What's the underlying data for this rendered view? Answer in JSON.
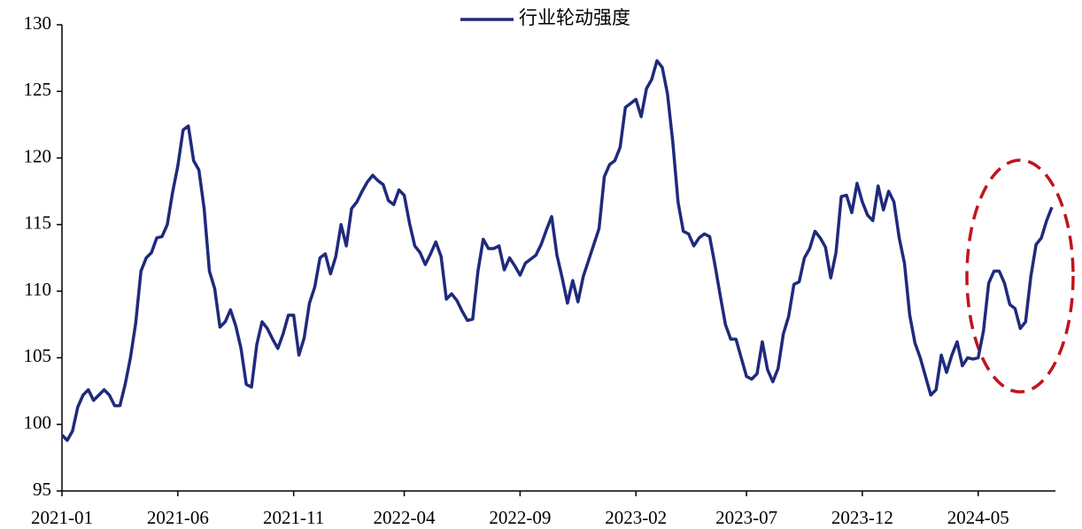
{
  "chart_data": {
    "type": "line",
    "categories": [
      "2021-01",
      null,
      null,
      null,
      null,
      null,
      null,
      null,
      null,
      null,
      null,
      null,
      null,
      null,
      null,
      null,
      null,
      null,
      null,
      null,
      null,
      null,
      "2021-06",
      null,
      null,
      null,
      null,
      null,
      null,
      null,
      null,
      null,
      null,
      null,
      null,
      null,
      null,
      null,
      null,
      null,
      null,
      null,
      null,
      null,
      "2021-11",
      null,
      null,
      null,
      null,
      null,
      null,
      null,
      null,
      null,
      null,
      null,
      null,
      null,
      null,
      null,
      null,
      null,
      null,
      null,
      null,
      "2022-04",
      null,
      null,
      null,
      null,
      null,
      null,
      null,
      null,
      null,
      null,
      null,
      null,
      null,
      null,
      null,
      null,
      null,
      null,
      null,
      null,
      null,
      "2022-09",
      null,
      null,
      null,
      null,
      null,
      null,
      null,
      null,
      null,
      null,
      null,
      null,
      null,
      null,
      null,
      null,
      null,
      null,
      null,
      null,
      null,
      "2023-02",
      null,
      null,
      null,
      null,
      null,
      null,
      null,
      null,
      null,
      null,
      null,
      null,
      null,
      null,
      null,
      null,
      null,
      null,
      null,
      null,
      "2023-07",
      null,
      null,
      null,
      null,
      null,
      null,
      null,
      null,
      null,
      null,
      null,
      null,
      null,
      null,
      null,
      null,
      null,
      null,
      null,
      null,
      null,
      "2023-12",
      null,
      null,
      null,
      null,
      null,
      null,
      null,
      null,
      null,
      null,
      null,
      null,
      null,
      null,
      null,
      null,
      null,
      null,
      null,
      null,
      null,
      "2024-05",
      null,
      null,
      null,
      null,
      null,
      null,
      null,
      null,
      null,
      null,
      null,
      null,
      null,
      null
    ],
    "series": [
      {
        "name": "行业轮动强度",
        "color": "#1f2a7c",
        "values": [
          99.2,
          98.8,
          99.5,
          101.3,
          102.2,
          102.6,
          101.8,
          102.2,
          102.6,
          102.2,
          101.4,
          101.4,
          103,
          105,
          107.6,
          111.5,
          112.5,
          112.9,
          114,
          114.1,
          115,
          117.4,
          119.4,
          122.1,
          122.4,
          119.8,
          119.1,
          116.2,
          111.5,
          110.2,
          107.3,
          107.7,
          108.6,
          107.4,
          105.7,
          103,
          102.8,
          106,
          107.7,
          107.2,
          106.4,
          105.7,
          106.8,
          108.2,
          108.2,
          105.2,
          106.5,
          109.1,
          110.3,
          112.5,
          112.8,
          111.3,
          112.6,
          115,
          113.4,
          116.2,
          116.7,
          117.5,
          118.2,
          118.7,
          118.3,
          118,
          116.8,
          116.5,
          117.6,
          117.2,
          115.1,
          113.4,
          112.9,
          112,
          112.8,
          113.7,
          112.6,
          109.4,
          109.8,
          109.3,
          108.5,
          107.8,
          107.9,
          111.5,
          113.9,
          113.2,
          113.2,
          113.4,
          111.6,
          112.5,
          111.9,
          111.2,
          112.1,
          112.4,
          112.7,
          113.5,
          114.6,
          115.6,
          112.7,
          111,
          109.1,
          110.8,
          109.2,
          111.1,
          112.3,
          113.5,
          114.7,
          118.6,
          119.5,
          119.8,
          120.8,
          123.8,
          124.1,
          124.4,
          123.1,
          125.2,
          125.9,
          127.3,
          126.8,
          124.8,
          121.2,
          116.7,
          114.5,
          114.3,
          113.4,
          114,
          114.3,
          114.1,
          112,
          109.7,
          107.5,
          106.4,
          106.4,
          105,
          103.6,
          103.4,
          103.8,
          106.2,
          104.1,
          103.2,
          104.2,
          106.8,
          108.1,
          110.5,
          110.7,
          112.5,
          113.2,
          114.5,
          114,
          113.3,
          111,
          112.9,
          117.1,
          117.2,
          115.9,
          118.1,
          116.7,
          115.7,
          115.3,
          117.9,
          116.1,
          117.5,
          116.7,
          114,
          112.1,
          108.2,
          106.1,
          105,
          103.6,
          102.2,
          102.6,
          105.2,
          103.9,
          105.2,
          106.2,
          104.4,
          105,
          104.9,
          105,
          107,
          110.6,
          111.5,
          111.5,
          110.6,
          109,
          108.7,
          107.2,
          107.7,
          111.1,
          113.5,
          114,
          115.3,
          116.3
        ]
      }
    ],
    "ylim": [
      95,
      130
    ],
    "yticks": [
      95,
      100,
      105,
      110,
      115,
      120,
      125,
      130
    ],
    "grid": false,
    "legend": "top"
  }
}
